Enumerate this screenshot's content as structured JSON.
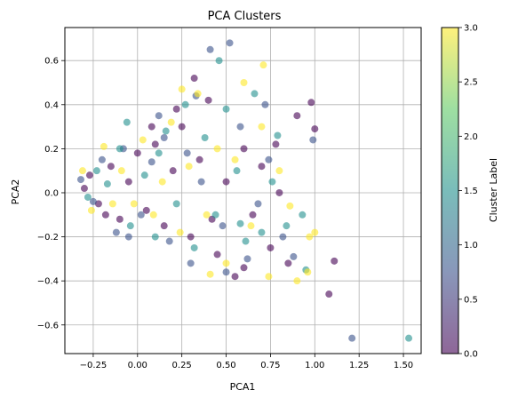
{
  "chart_data": {
    "type": "scatter",
    "title": "PCA Clusters",
    "xlabel": "PCA1",
    "ylabel": "PCA2",
    "xlim": [
      -0.41,
      1.6
    ],
    "ylim": [
      -0.73,
      0.75
    ],
    "xticks": [
      -0.25,
      0.0,
      0.25,
      0.5,
      0.75,
      1.0,
      1.25,
      1.5
    ],
    "xtick_labels": [
      "−0.25",
      "0.00",
      "0.25",
      "0.50",
      "0.75",
      "1.00",
      "1.25",
      "1.50"
    ],
    "yticks": [
      -0.6,
      -0.4,
      -0.2,
      0.0,
      0.2,
      0.4,
      0.6
    ],
    "ytick_labels": [
      "−0.6",
      "−0.4",
      "−0.2",
      "0.0",
      "0.2",
      "0.4",
      "0.6"
    ],
    "grid": true,
    "colorbar": {
      "label": "Cluster Label",
      "range": [
        0.0,
        3.0
      ],
      "ticks": [
        0.0,
        0.5,
        1.0,
        1.5,
        2.0,
        2.5,
        3.0
      ],
      "tick_labels": [
        "0.0",
        "0.5",
        "1.0",
        "1.5",
        "2.0",
        "2.5",
        "3.0"
      ],
      "colormap": "viridis",
      "alpha": 0.6
    },
    "series": [
      {
        "cluster": 0,
        "color": "#440154",
        "points": [
          [
            -0.3,
            0.02
          ],
          [
            -0.27,
            0.08
          ],
          [
            -0.22,
            -0.05
          ],
          [
            -0.15,
            0.12
          ],
          [
            -0.1,
            -0.12
          ],
          [
            -0.05,
            0.05
          ],
          [
            0.0,
            0.18
          ],
          [
            0.05,
            -0.08
          ],
          [
            0.1,
            0.22
          ],
          [
            0.15,
            -0.15
          ],
          [
            0.2,
            0.1
          ],
          [
            0.25,
            0.3
          ],
          [
            0.3,
            -0.2
          ],
          [
            0.35,
            0.15
          ],
          [
            0.4,
            0.42
          ],
          [
            0.45,
            -0.28
          ],
          [
            0.5,
            0.05
          ],
          [
            0.55,
            -0.38
          ],
          [
            0.6,
            0.2
          ],
          [
            0.65,
            -0.1
          ],
          [
            0.7,
            0.12
          ],
          [
            0.75,
            -0.25
          ],
          [
            0.8,
            0.0
          ],
          [
            0.9,
            0.35
          ],
          [
            0.98,
            0.41
          ],
          [
            1.0,
            0.29
          ],
          [
            1.11,
            -0.31
          ],
          [
            1.08,
            -0.46
          ],
          [
            0.85,
            -0.32
          ],
          [
            0.78,
            0.22
          ],
          [
            0.32,
            0.52
          ],
          [
            0.22,
            0.38
          ],
          [
            -0.18,
            -0.1
          ],
          [
            0.08,
            0.3
          ],
          [
            0.42,
            -0.12
          ],
          [
            0.6,
            -0.34
          ]
        ]
      },
      {
        "cluster": 1,
        "color": "#3b528b",
        "points": [
          [
            -0.32,
            0.06
          ],
          [
            -0.25,
            -0.04
          ],
          [
            -0.2,
            0.15
          ],
          [
            -0.12,
            -0.18
          ],
          [
            -0.08,
            0.2
          ],
          [
            0.02,
            -0.1
          ],
          [
            0.08,
            0.14
          ],
          [
            0.12,
            0.35
          ],
          [
            0.18,
            -0.22
          ],
          [
            0.28,
            0.18
          ],
          [
            0.33,
            0.44
          ],
          [
            0.41,
            0.65
          ],
          [
            0.52,
            0.68
          ],
          [
            0.48,
            -0.15
          ],
          [
            0.58,
            0.3
          ],
          [
            0.62,
            -0.3
          ],
          [
            0.68,
            -0.05
          ],
          [
            0.72,
            0.4
          ],
          [
            0.82,
            -0.2
          ],
          [
            0.88,
            -0.29
          ],
          [
            0.99,
            0.24
          ],
          [
            1.21,
            -0.66
          ],
          [
            0.5,
            -0.36
          ],
          [
            0.36,
            0.05
          ],
          [
            0.3,
            -0.32
          ],
          [
            -0.05,
            -0.2
          ],
          [
            0.15,
            0.25
          ],
          [
            0.74,
            0.15
          ]
        ]
      },
      {
        "cluster": 2,
        "color": "#21908d",
        "points": [
          [
            -0.28,
            -0.02
          ],
          [
            -0.23,
            0.1
          ],
          [
            -0.17,
            0.04
          ],
          [
            -0.1,
            0.2
          ],
          [
            -0.04,
            -0.15
          ],
          [
            -0.06,
            0.32
          ],
          [
            0.04,
            0.08
          ],
          [
            0.1,
            -0.2
          ],
          [
            0.16,
            0.28
          ],
          [
            0.22,
            -0.05
          ],
          [
            0.27,
            0.4
          ],
          [
            0.32,
            -0.25
          ],
          [
            0.38,
            0.25
          ],
          [
            0.44,
            -0.1
          ],
          [
            0.5,
            0.38
          ],
          [
            0.56,
            0.1
          ],
          [
            0.61,
            -0.22
          ],
          [
            0.66,
            0.45
          ],
          [
            0.7,
            -0.18
          ],
          [
            0.76,
            0.05
          ],
          [
            0.79,
            0.26
          ],
          [
            0.84,
            -0.15
          ],
          [
            0.93,
            -0.1
          ],
          [
            0.95,
            -0.35
          ],
          [
            1.53,
            -0.66
          ],
          [
            0.46,
            0.6
          ],
          [
            0.12,
            0.18
          ],
          [
            0.58,
            -0.14
          ]
        ]
      },
      {
        "cluster": 3,
        "color": "#fde725",
        "points": [
          [
            -0.31,
            0.1
          ],
          [
            -0.26,
            -0.08
          ],
          [
            -0.19,
            0.21
          ],
          [
            -0.14,
            -0.05
          ],
          [
            -0.09,
            0.1
          ],
          [
            -0.02,
            -0.05
          ],
          [
            0.03,
            0.24
          ],
          [
            0.09,
            -0.1
          ],
          [
            0.14,
            0.05
          ],
          [
            0.19,
            0.32
          ],
          [
            0.24,
            -0.18
          ],
          [
            0.29,
            0.12
          ],
          [
            0.34,
            0.45
          ],
          [
            0.39,
            -0.1
          ],
          [
            0.45,
            0.2
          ],
          [
            0.5,
            -0.32
          ],
          [
            0.55,
            0.15
          ],
          [
            0.6,
            0.5
          ],
          [
            0.64,
            -0.15
          ],
          [
            0.71,
            0.58
          ],
          [
            0.74,
            -0.38
          ],
          [
            0.8,
            0.1
          ],
          [
            0.86,
            -0.06
          ],
          [
            0.9,
            -0.4
          ],
          [
            0.97,
            -0.2
          ],
          [
            1.0,
            -0.18
          ],
          [
            0.96,
            -0.36
          ],
          [
            0.41,
            -0.37
          ],
          [
            0.7,
            0.3
          ],
          [
            0.25,
            0.47
          ]
        ]
      }
    ]
  }
}
